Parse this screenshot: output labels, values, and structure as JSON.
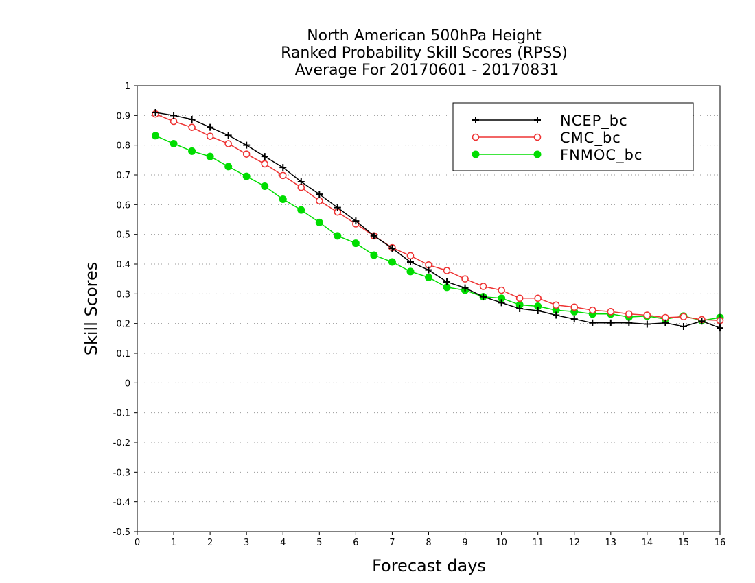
{
  "chart_data": {
    "type": "line",
    "title": [
      "North American 500hPa Height",
      "Ranked Probability Skill Scores (RPSS)",
      "Average For 20170601 - 20170831"
    ],
    "xlabel": "Forecast days",
    "ylabel": "Skill Scores",
    "xlim": [
      0,
      16
    ],
    "ylim": [
      -0.5,
      1
    ],
    "xticks": [
      "0",
      "1",
      "2",
      "3",
      "4",
      "5",
      "6",
      "7",
      "8",
      "9",
      "10",
      "11",
      "12",
      "13",
      "14",
      "15",
      "16"
    ],
    "yticks": [
      "-0.5",
      "-0.4",
      "-0.3",
      "-0.2",
      "-0.1",
      "0",
      "0.1",
      "0.2",
      "0.3",
      "0.4",
      "0.5",
      "0.6",
      "0.7",
      "0.8",
      "0.9",
      "1"
    ],
    "grid": "horizontal dotted",
    "legend_position": "top-right",
    "x": [
      0.5,
      1,
      1.5,
      2,
      2.5,
      3,
      3.5,
      4,
      4.5,
      5,
      5.5,
      6,
      6.5,
      7,
      7.5,
      8,
      8.5,
      9,
      9.5,
      10,
      10.5,
      11,
      11.5,
      12,
      12.5,
      13,
      13.5,
      14,
      14.5,
      15,
      15.5,
      16
    ],
    "series": [
      {
        "name": "NCEP_bc",
        "color": "#000000",
        "marker": "plus",
        "values": [
          0.91,
          0.9,
          0.887,
          0.86,
          0.833,
          0.8,
          0.762,
          0.725,
          0.677,
          0.635,
          0.59,
          0.545,
          0.495,
          0.453,
          0.407,
          0.38,
          0.34,
          0.32,
          0.29,
          0.27,
          0.25,
          0.243,
          0.228,
          0.215,
          0.202,
          0.202,
          0.202,
          0.198,
          0.202,
          0.19,
          0.208,
          0.185
        ]
      },
      {
        "name": "CMC_bc",
        "color": "#ee3333",
        "marker": "open-circle",
        "values": [
          0.905,
          0.88,
          0.86,
          0.83,
          0.805,
          0.77,
          0.737,
          0.698,
          0.658,
          0.613,
          0.575,
          0.535,
          0.495,
          0.455,
          0.428,
          0.397,
          0.378,
          0.35,
          0.325,
          0.312,
          0.285,
          0.285,
          0.262,
          0.255,
          0.245,
          0.24,
          0.232,
          0.228,
          0.22,
          0.223,
          0.213,
          0.21
        ]
      },
      {
        "name": "FNMOC_bc",
        "color": "#00dd00",
        "marker": "filled-circle",
        "values": [
          0.832,
          0.805,
          0.78,
          0.762,
          0.728,
          0.695,
          0.662,
          0.618,
          0.582,
          0.54,
          0.495,
          0.47,
          0.43,
          0.407,
          0.375,
          0.355,
          0.322,
          0.312,
          0.29,
          0.285,
          0.263,
          0.258,
          0.245,
          0.24,
          0.232,
          0.232,
          0.222,
          0.225,
          0.215,
          0.225,
          0.21,
          0.22
        ]
      }
    ]
  }
}
